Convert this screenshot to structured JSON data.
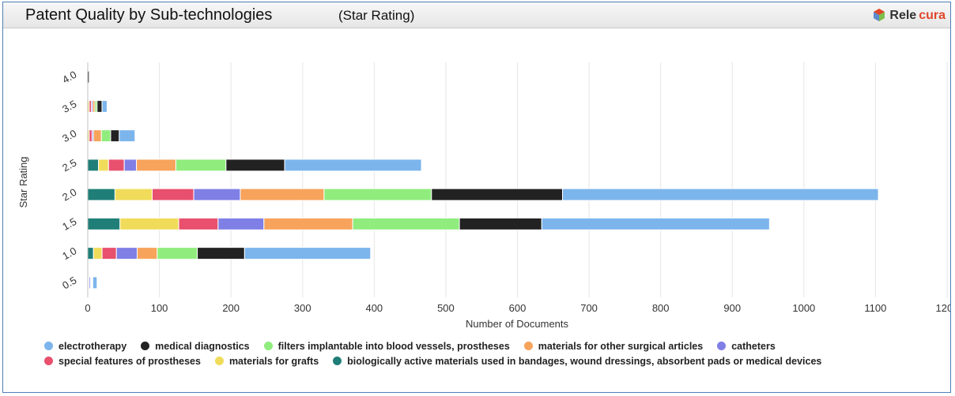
{
  "header": {
    "title": "Patent Quality by Sub-technologies",
    "subtitle": "(Star Rating)",
    "brand_left": "Rele",
    "brand_right": "cura"
  },
  "chart_data": {
    "type": "bar",
    "orientation": "horizontal",
    "stacked": true,
    "title": "Patent Quality by Sub-technologies",
    "subtitle": "(Star Rating)",
    "xlabel": "Number of Documents",
    "ylabel": "Star Rating",
    "xlim": [
      0,
      1200
    ],
    "xticks": [
      0,
      100,
      200,
      300,
      400,
      500,
      600,
      700,
      800,
      900,
      1000,
      1100,
      1200
    ],
    "grid": true,
    "legend_position": "bottom",
    "categories": [
      "4.0",
      "3.5",
      "3.0",
      "2.5",
      "2.0",
      "1.5",
      "1.0",
      "0.5"
    ],
    "series": [
      {
        "name": "biologically active materials used in bandages, wound dressings, absorbent pads or medical devices",
        "color": "#1f7f78",
        "values": [
          0,
          0,
          0,
          15,
          38,
          45,
          8,
          0
        ]
      },
      {
        "name": "materials for grafts",
        "color": "#f0dc5a",
        "values": [
          0,
          2,
          2,
          14,
          52,
          82,
          12,
          1
        ]
      },
      {
        "name": "special features of prostheses",
        "color": "#e8506e",
        "values": [
          0,
          3,
          4,
          22,
          58,
          55,
          20,
          1
        ]
      },
      {
        "name": "catheters",
        "color": "#7f7fe6",
        "values": [
          0,
          2,
          2,
          17,
          65,
          64,
          29,
          2
        ]
      },
      {
        "name": "materials for other surgical articles",
        "color": "#f7a35c",
        "values": [
          0,
          3,
          11,
          55,
          117,
          124,
          28,
          1
        ]
      },
      {
        "name": "filters implantable into blood vessels, prostheses",
        "color": "#90ed7d",
        "values": [
          0,
          3,
          13,
          70,
          150,
          149,
          56,
          1
        ]
      },
      {
        "name": "medical diagnostics",
        "color": "#222222",
        "values": [
          2,
          7,
          12,
          82,
          183,
          115,
          66,
          1
        ]
      },
      {
        "name": "electrotherapy",
        "color": "#7cb5ec",
        "values": [
          0,
          7,
          22,
          191,
          441,
          318,
          176,
          6
        ]
      }
    ]
  },
  "legend": {
    "rows": [
      [
        {
          "label": "electrotherapy",
          "color": "#7cb5ec"
        },
        {
          "label": "medical diagnostics",
          "color": "#222222"
        },
        {
          "label": "filters implantable into blood vessels, prostheses",
          "color": "#90ed7d"
        },
        {
          "label": "materials for other surgical articles",
          "color": "#f7a35c"
        },
        {
          "label": "catheters",
          "color": "#7f7fe6"
        }
      ],
      [
        {
          "label": "special features of prostheses",
          "color": "#e8506e"
        },
        {
          "label": "materials for grafts",
          "color": "#f0dc5a"
        },
        {
          "label": "biologically active materials used in bandages, wound dressings, absorbent pads or medical devices",
          "color": "#1f7f78"
        }
      ]
    ]
  }
}
